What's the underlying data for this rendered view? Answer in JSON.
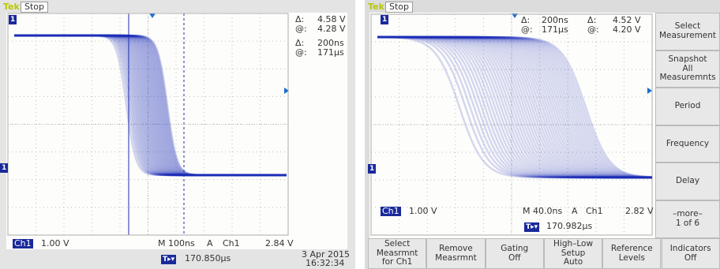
{
  "left_scope": {
    "brand": "Tek",
    "status": "Stop",
    "channel_marker": "1",
    "readouts": [
      {
        "label": "Δ:",
        "value": "4.58 V"
      },
      {
        "label": "@:",
        "value": "4.28 V"
      },
      {
        "label": "Δ:",
        "value": "200ns"
      },
      {
        "label": "@:",
        "value": "171µs"
      }
    ],
    "channel": "Ch1",
    "volts_per_div": "1.00 V",
    "timebase": "M 100ns",
    "trigger_mode": "A",
    "trigger_channel": "Ch1",
    "trigger_level": "2.84 V",
    "trigger_position": "170.850µs",
    "date": "3 Apr 2015",
    "time": "16:32:34"
  },
  "right_scope": {
    "brand": "Tek",
    "status": "Stop",
    "channel_marker": "1",
    "readouts": [
      {
        "label": "Δ:",
        "value": "200ns"
      },
      {
        "label": "@:",
        "value": "171µs"
      },
      {
        "label": "Δ:",
        "value": "4.52 V"
      },
      {
        "label": "@:",
        "value": "4.20 V"
      }
    ],
    "channel": "Ch1",
    "volts_per_div": "1.00 V",
    "timebase": "M 40.0ns",
    "trigger_mode": "A",
    "trigger_channel": "Ch1",
    "trigger_level": "2.82 V",
    "trigger_position": "170.982µs",
    "side_menu": [
      {
        "lines": [
          "Select",
          "Measurement"
        ]
      },
      {
        "lines": [
          "Snapshot",
          "All",
          "Measuremnts"
        ]
      },
      {
        "lines": [
          "Period"
        ]
      },
      {
        "lines": [
          "Frequency"
        ]
      },
      {
        "lines": [
          "Delay"
        ]
      },
      {
        "lines": [
          "–more–",
          "1 of 6"
        ]
      }
    ],
    "bottom_menu": [
      {
        "lines": [
          "Select",
          "Measrmnt",
          "for Ch1"
        ]
      },
      {
        "lines": [
          "Remove",
          "Measrmnt"
        ]
      },
      {
        "lines": [
          "Gating",
          "Off"
        ]
      },
      {
        "lines": [
          "High–Low",
          "Setup",
          "Auto"
        ]
      },
      {
        "lines": [
          "Reference",
          "Levels"
        ]
      },
      {
        "lines": [
          "Indicators",
          "Off"
        ]
      }
    ]
  }
}
